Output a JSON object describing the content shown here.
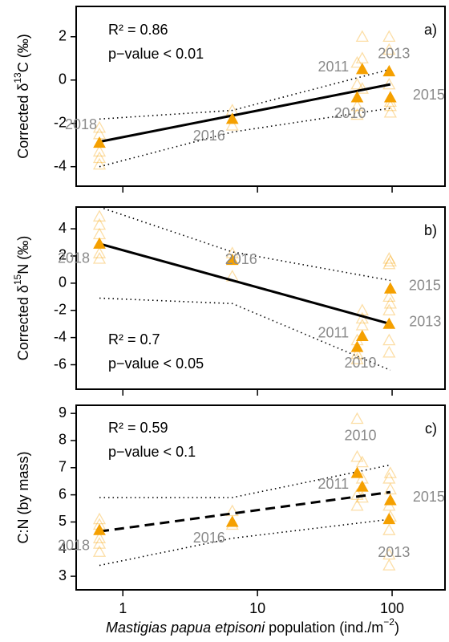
{
  "chart_data": [
    {
      "type": "scatter",
      "panel": "a)",
      "annotations": [
        "R² = 0.86",
        "p−value < 0.01"
      ],
      "ylabel": {
        "pre": "Corrected δ",
        "sup": "13",
        "post": "C (‰)"
      },
      "xscale": "log",
      "xlim": [
        0.45,
        247
      ],
      "xticks": [
        1,
        10,
        100
      ],
      "ylim": [
        -4.9,
        3.4
      ],
      "yticks": [
        -4,
        -2,
        0,
        2
      ],
      "points": {
        "labels": [
          "2018",
          "2016",
          "2010",
          "2011",
          "2013",
          "2015"
        ],
        "x": [
          0.67,
          6.5,
          55,
          60,
          95,
          97
        ],
        "y": [
          -2.9,
          -1.8,
          -0.8,
          0.5,
          0.4,
          -0.8
        ],
        "color": "#f5a000"
      },
      "individuals": {
        "x": [
          0.67,
          0.67,
          0.67,
          0.67,
          0.67,
          6.5,
          6.5,
          55,
          55,
          55,
          55,
          60,
          60,
          60,
          95,
          95,
          95,
          97,
          97,
          97
        ],
        "y": [
          -2.2,
          -2.5,
          -3.3,
          -3.6,
          -3.9,
          -1.4,
          -2.1,
          0.8,
          -0.2,
          -1.2,
          -1.6,
          2.0,
          1.0,
          -0.4,
          2.0,
          1.4,
          -0.2,
          -1.0,
          -1.5,
          -1.2
        ],
        "color": "#f5a000"
      },
      "fit": {
        "x": [
          0.67,
          97
        ],
        "y": [
          -2.85,
          -0.2
        ],
        "style": "solid"
      },
      "ci_upper": {
        "x": [
          0.67,
          6.5,
          97
        ],
        "y": [
          -1.8,
          -1.4,
          0.5
        ]
      },
      "ci_lower": {
        "x": [
          0.67,
          6.5,
          97
        ],
        "y": [
          -4.0,
          -2.4,
          -1.3
        ]
      }
    },
    {
      "type": "scatter",
      "panel": "b)",
      "annotations": [
        "R² = 0.7",
        "p−value < 0.05"
      ],
      "ylabel": {
        "pre": "Corrected δ",
        "sup": "15",
        "post": "N (‰)"
      },
      "xscale": "log",
      "xlim": [
        0.45,
        247
      ],
      "xticks": [
        1,
        10,
        100
      ],
      "ylim": [
        -7.8,
        5.6
      ],
      "yticks": [
        -6,
        -4,
        -2,
        0,
        2,
        4
      ],
      "points": {
        "labels": [
          "2018",
          "2016",
          "2010",
          "2011",
          "2013",
          "2015"
        ],
        "x": [
          0.67,
          6.5,
          55,
          60,
          95,
          97
        ],
        "y": [
          2.9,
          1.7,
          -4.7,
          -3.9,
          -3.0,
          -0.4
        ],
        "color": "#f5a000"
      },
      "individuals": {
        "x": [
          0.67,
          0.67,
          0.67,
          0.67,
          0.67,
          6.5,
          6.5,
          55,
          55,
          55,
          60,
          60,
          60,
          95,
          95,
          95,
          95,
          95,
          95,
          97,
          97
        ],
        "y": [
          4.9,
          4.3,
          3.6,
          2.2,
          1.8,
          2.2,
          0.5,
          -4.2,
          -5.2,
          -5.6,
          -2.0,
          -2.6,
          -3.1,
          1.8,
          1.4,
          -1.0,
          -2.0,
          -4.2,
          -5.1,
          1.6,
          -1.5
        ],
        "color": "#f5a000"
      },
      "fit": {
        "x": [
          0.67,
          97
        ],
        "y": [
          2.9,
          -3.0
        ],
        "style": "solid"
      },
      "ci_upper": {
        "x": [
          0.67,
          6.5,
          97
        ],
        "y": [
          5.6,
          2.3,
          0.2
        ]
      },
      "ci_lower": {
        "x": [
          0.67,
          6.5,
          97
        ],
        "y": [
          -1.1,
          -1.5,
          -6.4
        ]
      }
    },
    {
      "type": "scatter",
      "panel": "c)",
      "annotations": [
        "R² = 0.59",
        "p−value < 0.1"
      ],
      "ylabel": "C:N (by mass)",
      "xlabel": {
        "italic": "Mastigias papua etpisoni",
        "pre": "population (ind./m",
        "sup": "−2",
        "post": ")"
      },
      "xscale": "log",
      "xlim": [
        0.45,
        247
      ],
      "xticks": [
        1,
        10,
        100
      ],
      "ylim": [
        2.5,
        9.3
      ],
      "yticks": [
        3,
        4,
        5,
        6,
        7,
        8,
        9
      ],
      "points": {
        "labels": [
          "2018",
          "2016",
          "2010",
          "2011",
          "2013",
          "2015"
        ],
        "x": [
          0.67,
          6.5,
          55,
          60,
          95,
          97
        ],
        "y": [
          4.7,
          5.0,
          6.8,
          6.3,
          5.1,
          5.8
        ],
        "color": "#f5a000"
      },
      "individuals": {
        "x": [
          0.67,
          0.67,
          0.67,
          0.67,
          0.67,
          6.5,
          6.5,
          55,
          55,
          55,
          55,
          60,
          60,
          60,
          95,
          95,
          95,
          95,
          95,
          97,
          97,
          97
        ],
        "y": [
          5.1,
          4.9,
          4.4,
          4.2,
          3.9,
          5.4,
          4.9,
          8.8,
          7.4,
          6.0,
          5.6,
          7.2,
          6.6,
          5.9,
          6.6,
          5.6,
          4.7,
          3.8,
          3.4,
          6.8,
          6.2,
          5.2
        ],
        "color": "#f5a000"
      },
      "fit": {
        "x": [
          0.67,
          97
        ],
        "y": [
          4.65,
          6.1
        ],
        "style": "dashed"
      },
      "ci_upper": {
        "x": [
          0.67,
          6.5,
          97
        ],
        "y": [
          5.9,
          5.9,
          7.1
        ]
      },
      "ci_lower": {
        "x": [
          0.67,
          6.5,
          97
        ],
        "y": [
          3.4,
          4.4,
          5.1
        ]
      }
    }
  ]
}
